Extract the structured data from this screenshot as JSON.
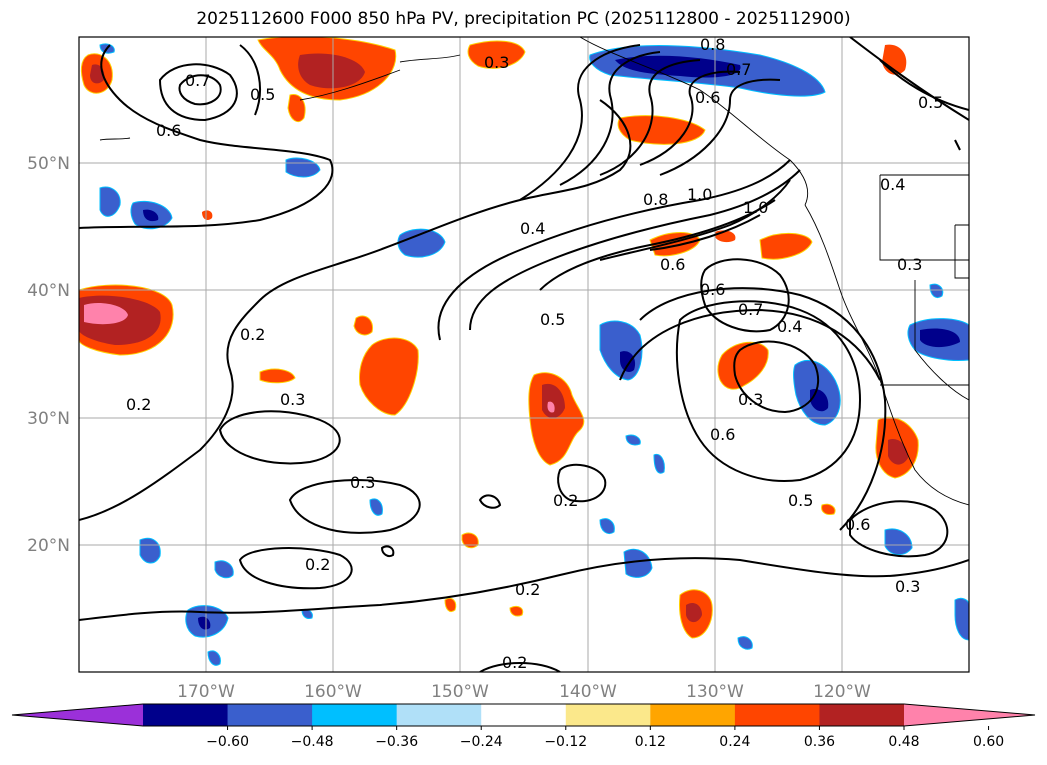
{
  "title": "2025112600 F000 850 hPa PV, precipitation PC (2025112800 - 2025112900)",
  "colors": {
    "bins": [
      "#9b30d9",
      "#00008b",
      "#3a5fcd",
      "#00bfff",
      "#b0e0f8",
      "#ffffff",
      "#fbe88b",
      "#ffa500",
      "#ff4500",
      "#b22222",
      "#ff82ab"
    ],
    "land": "#ffffff",
    "grid": "#aaaaaa",
    "contour": "#000000"
  },
  "map": {
    "lon_range": [
      -180,
      -110
    ],
    "lat_range": [
      10,
      60
    ],
    "lat_labels": [
      "50°N",
      "40°N",
      "30°N",
      "20°N"
    ],
    "lon_labels": [
      "170°W",
      "160°W",
      "150°W",
      "140°W",
      "130°W",
      "120°W"
    ]
  },
  "contour_labels": [
    "0.7",
    "0.6",
    "0.5",
    "0.3",
    "0.8",
    "0.7",
    "0.6",
    "0.5",
    "0.4",
    "0.8",
    "1.0",
    "1.0",
    "0.4",
    "0.6",
    "0.3",
    "0.5",
    "0.6",
    "0.7",
    "0.4",
    "0.3",
    "0.6",
    "0.2",
    "0.2",
    "0.3",
    "0.3",
    "0.2",
    "0.2",
    "0.5",
    "0.6",
    "0.3",
    "0.2",
    "0.2"
  ],
  "colorbar": {
    "ticks": [
      "−0.60",
      "−0.48",
      "−0.36",
      "−0.24",
      "−0.12",
      "0.12",
      "0.24",
      "0.36",
      "0.48",
      "0.60"
    ]
  }
}
